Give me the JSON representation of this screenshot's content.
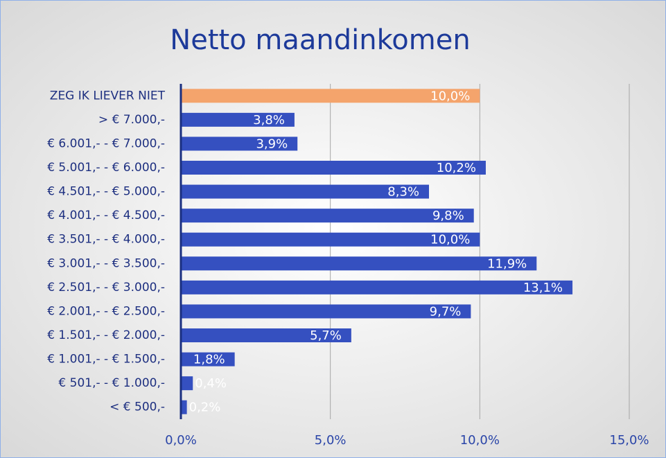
{
  "chart_data": {
    "type": "barh",
    "title": "Netto maandinkomen",
    "categories": [
      "ZEG IK LIEVER NIET",
      "> € 7.000,-",
      "€ 6.001,- - € 7.000,-",
      "€ 5.001,- - € 6.000,-",
      "€ 4.501,- - € 5.000,-",
      "€ 4.001,- - € 4.500,-",
      "€ 3.501,- - € 4.000,-",
      "€ 3.001,- - € 3.500,-",
      "€ 2.501,- - € 3.000,-",
      "€ 2.001,- - € 2.500,-",
      "€ 1.501,- - € 2.000,-",
      "€ 1.001,- - € 1.500,-",
      "€ 501,- - € 1.000,-",
      "< € 500,-"
    ],
    "values": [
      10.0,
      3.8,
      3.9,
      10.2,
      8.3,
      9.8,
      10.0,
      11.9,
      13.1,
      9.7,
      5.7,
      1.8,
      0.4,
      0.2
    ],
    "value_labels": [
      "10,0%",
      "3,8%",
      "3,9%",
      "10,2%",
      "8,3%",
      "9,8%",
      "10,0%",
      "11,9%",
      "13,1%",
      "9,7%",
      "5,7%",
      "1,8%",
      "0,4%",
      "0,2%"
    ],
    "colors": [
      "#f4a46c",
      "#3550c0",
      "#3550c0",
      "#3550c0",
      "#3550c0",
      "#3550c0",
      "#3550c0",
      "#3550c0",
      "#3550c0",
      "#3550c0",
      "#3550c0",
      "#3550c0",
      "#3550c0",
      "#3550c0"
    ],
    "xlim": [
      0,
      15
    ],
    "xticks": [
      {
        "value": 0,
        "label": "0,0%"
      },
      {
        "value": 5,
        "label": "5,0%"
      },
      {
        "value": 10,
        "label": "10,0%"
      },
      {
        "value": 15,
        "label": "15,0%"
      }
    ],
    "grid": true
  }
}
